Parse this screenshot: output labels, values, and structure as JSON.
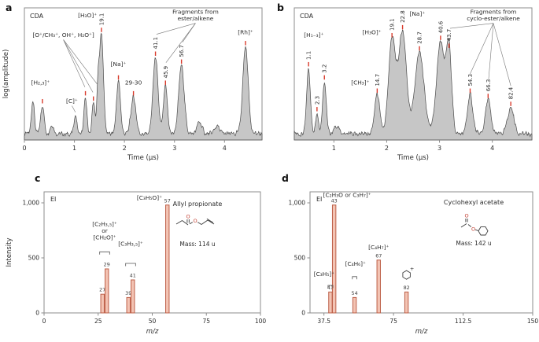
{
  "figure": {
    "panels": [
      {
        "letter": "a"
      },
      {
        "letter": "b"
      },
      {
        "letter": "c"
      },
      {
        "letter": "d"
      }
    ]
  },
  "colors": {
    "area_fill": "#c6c6c6",
    "area_stroke": "#4a4a4a",
    "peak_mark": "#d93a2b",
    "bar_fill": "#f3c4b4",
    "bar_stroke": "#bd5f47",
    "axis": "#8c8c8c",
    "text": "#2b2b2b",
    "oxygen": "#c0392b",
    "bond": "#3c3c3c"
  },
  "chart_data": [
    {
      "id": "a",
      "type": "area",
      "seed": 7,
      "detector_label": "CDA",
      "xlabel": "Time (μs)",
      "ylabel": "log(amplitude)",
      "xlim": [
        0,
        4.75
      ],
      "xticks": [
        0,
        1,
        2,
        3,
        4
      ],
      "xtick_labels": [
        "0",
        "1",
        "2",
        "3",
        "4"
      ],
      "peaks": [
        {
          "t": 0.17,
          "h": 0.26,
          "w": 0.03
        },
        {
          "t": 0.36,
          "h": 0.22,
          "w": 0.035,
          "mark": true
        },
        {
          "t": 0.55,
          "h": 0.07,
          "w": 0.04
        },
        {
          "t": 1.02,
          "h": 0.14,
          "w": 0.03
        },
        {
          "t": 1.22,
          "h": 0.28,
          "w": 0.028,
          "mark": true
        },
        {
          "t": 1.38,
          "h": 0.24,
          "w": 0.028,
          "mark": true
        },
        {
          "t": 1.47,
          "h": 0.3,
          "w": 0.025
        },
        {
          "t": 1.54,
          "h": 0.76,
          "w": 0.04,
          "mark": true,
          "mass": "19.1"
        },
        {
          "t": 1.88,
          "h": 0.4,
          "w": 0.04,
          "mark": true
        },
        {
          "t": 2.18,
          "h": 0.28,
          "w": 0.05,
          "mark": true
        },
        {
          "t": 2.62,
          "h": 0.58,
          "w": 0.05,
          "mark": true,
          "mass": "41.1"
        },
        {
          "t": 2.82,
          "h": 0.36,
          "w": 0.04,
          "mark": true,
          "mass": "45.9"
        },
        {
          "t": 3.14,
          "h": 0.52,
          "w": 0.055,
          "mark": true,
          "mass": "56.7"
        },
        {
          "t": 3.5,
          "h": 0.09,
          "w": 0.05
        },
        {
          "t": 3.85,
          "h": 0.06,
          "w": 0.05
        },
        {
          "t": 4.42,
          "h": 0.66,
          "w": 0.055,
          "mark": true
        }
      ],
      "labels": [
        {
          "text": "[H₂,₃]⁺",
          "x": 0.32,
          "yf": 0.42
        },
        {
          "text": "[O⁺/CH₃⁺, OH⁺, H₂O⁺]",
          "x": 0.78,
          "yf": 0.78,
          "pointers": [
            {
              "x": 1.21,
              "yf": 0.4
            },
            {
              "x": 1.37,
              "yf": 0.36
            },
            {
              "x": 1.46,
              "yf": 0.42
            }
          ]
        },
        {
          "text": "[C]⁺",
          "x": 0.95,
          "yf": 0.28,
          "pointers": [
            {
              "x": 1.02,
              "yf": 0.21
            }
          ]
        },
        {
          "text": "[H₃O]⁺",
          "x": 1.26,
          "yf": 0.93
        },
        {
          "text": "[Na]⁺",
          "x": 1.88,
          "yf": 0.56
        },
        {
          "text": "29-30",
          "x": 2.18,
          "yf": 0.42
        },
        {
          "text": "Fragments from\nester/alkene",
          "x": 3.42,
          "yf": 0.955,
          "pointers": [
            {
              "x": 2.64,
              "yf": 0.8
            },
            {
              "x": 2.83,
              "yf": 0.585
            },
            {
              "x": 3.16,
              "yf": 0.74
            }
          ]
        },
        {
          "text": "[Rh]⁺",
          "x": 4.42,
          "yf": 0.8
        }
      ]
    },
    {
      "id": "b",
      "type": "area",
      "seed": 13,
      "detector_label": "CDA",
      "xlabel": "Time (μs)",
      "ylabel": "",
      "xlim": [
        0.25,
        4.75
      ],
      "xticks": [
        1,
        2,
        3,
        4
      ],
      "xtick_labels": [
        "1",
        "2",
        "3",
        "4"
      ],
      "peaks": [
        {
          "t": 0.52,
          "h": 0.5,
          "w": 0.035,
          "mark": true,
          "mass": "1.1"
        },
        {
          "t": 0.68,
          "h": 0.16,
          "w": 0.03,
          "mark": true,
          "mass": "2.3"
        },
        {
          "t": 0.82,
          "h": 0.4,
          "w": 0.035,
          "mark": true,
          "mass": "3.2"
        },
        {
          "t": 1.05,
          "h": 0.06,
          "w": 0.05
        },
        {
          "t": 1.82,
          "h": 0.3,
          "w": 0.05,
          "mark": true,
          "mass": "14.7"
        },
        {
          "t": 2.1,
          "h": 0.72,
          "w": 0.065,
          "mark": true,
          "mass": "19.1"
        },
        {
          "t": 2.3,
          "h": 0.78,
          "w": 0.075,
          "mark": true,
          "mass": "22.8"
        },
        {
          "t": 2.62,
          "h": 0.62,
          "w": 0.085,
          "mark": true,
          "mass": "28.7"
        },
        {
          "t": 3.02,
          "h": 0.7,
          "w": 0.075,
          "mark": true,
          "mass": "40.6"
        },
        {
          "t": 3.18,
          "h": 0.64,
          "w": 0.05,
          "mark": true,
          "mass": "43.7"
        },
        {
          "t": 3.58,
          "h": 0.3,
          "w": 0.05,
          "mark": true,
          "mass": "54.3"
        },
        {
          "t": 3.92,
          "h": 0.26,
          "w": 0.05,
          "mark": true,
          "mass": "66.3"
        },
        {
          "t": 4.35,
          "h": 0.2,
          "w": 0.06,
          "mark": true,
          "mass": "82.4"
        }
      ],
      "labels": [
        {
          "text": "[H₁₋₃]⁺",
          "x": 0.62,
          "yf": 0.78
        },
        {
          "text": "[CH₃]⁺",
          "x": 1.5,
          "yf": 0.42
        },
        {
          "text": "[H₃O]⁺",
          "x": 1.72,
          "yf": 0.8
        },
        {
          "text": "[Na]⁺",
          "x": 2.58,
          "yf": 0.94
        },
        {
          "text": "Fragments from\ncyclo-ester/alkene",
          "x": 4.02,
          "yf": 0.955,
          "pointers": [
            {
              "x": 3.2,
              "yf": 0.845
            },
            {
              "x": 3.58,
              "yf": 0.5
            },
            {
              "x": 3.93,
              "yf": 0.46
            },
            {
              "x": 4.35,
              "yf": 0.41
            }
          ]
        }
      ]
    },
    {
      "id": "c",
      "type": "bar",
      "method_label": "EI",
      "xlabel": "m/z",
      "ylabel": "Intensity",
      "xlim": [
        0,
        100
      ],
      "xticks": [
        0,
        25,
        50,
        75,
        100
      ],
      "xtick_labels": [
        "0",
        "25",
        "50",
        "75",
        "100"
      ],
      "ylim": [
        0,
        1100
      ],
      "yticks": [
        0,
        500,
        1000
      ],
      "ytick_labels": [
        "0",
        "500",
        "1,000"
      ],
      "bars": [
        {
          "mz": 27,
          "intensity": 170
        },
        {
          "mz": 29,
          "intensity": 400
        },
        {
          "mz": 39,
          "intensity": 140
        },
        {
          "mz": 41,
          "intensity": 300
        },
        {
          "mz": 57,
          "intensity": 980
        }
      ],
      "annotations": [
        {
          "lines": [
            "[C₂H₃,₅]⁺",
            "or",
            "[CH₂O]⁺"
          ],
          "x": 28,
          "top_y": 790,
          "bracket": {
            "x1": 25.7,
            "x2": 30.3,
            "y": 555
          }
        },
        {
          "lines": [
            "[C₃H₃,₅]⁺"
          ],
          "x": 40,
          "top_y": 610,
          "bracket": {
            "x1": 37.7,
            "x2": 42.3,
            "y": 450
          }
        },
        {
          "lines": [
            "[C₃H₅O]⁺"
          ],
          "x": 56,
          "dx": -4,
          "anchor": "end",
          "top_y": 1030
        }
      ],
      "compound": {
        "name": "Allyl propionate",
        "mass": "Mass: 114 u",
        "structure": "allyl-propionate"
      }
    },
    {
      "id": "d",
      "type": "bar",
      "method_label": "EI",
      "xlabel": "m/z",
      "ylabel": "",
      "xlim": [
        30,
        150
      ],
      "xticks": [
        37.5,
        75,
        112.5,
        150
      ],
      "xtick_labels": [
        "37.5",
        "75",
        "112.5",
        "150"
      ],
      "ylim": [
        0,
        1100
      ],
      "yticks": [
        0,
        500,
        1000
      ],
      "ytick_labels": [
        "0",
        "500",
        "1,000"
      ],
      "bars": [
        {
          "mz": 41,
          "intensity": 190
        },
        {
          "mz": 43,
          "intensity": 980
        },
        {
          "mz": 54,
          "intensity": 140
        },
        {
          "mz": 67,
          "intensity": 480
        },
        {
          "mz": 82,
          "intensity": 190
        }
      ],
      "annotations": [
        {
          "lines": [
            "[C₃H₅]⁺"
          ],
          "x": 37.6,
          "top_y": 335,
          "bracket": {
            "x1": 39.7,
            "x2": 42.3,
            "y": 250
          }
        },
        {
          "lines": [
            "[C₂H₃O or C₃H₇]⁺"
          ],
          "x": 50,
          "top_y": 1055
        },
        {
          "lines": [
            "[C₄H₆]⁺"
          ],
          "x": 54.5,
          "top_y": 430,
          "bracket": {
            "x1": 52.8,
            "x2": 55.2,
            "y": 330
          }
        },
        {
          "lines": [
            "[C₄H₇]⁺"
          ],
          "x": 67,
          "top_y": 580
        },
        {
          "ring": true,
          "x": 82,
          "ring_y": 345,
          "plus": "+"
        }
      ],
      "compound": {
        "name": "Cyclohexyl acetate",
        "mass": "Mass: 142 u",
        "structure": "cyclohexyl-acetate"
      }
    }
  ]
}
